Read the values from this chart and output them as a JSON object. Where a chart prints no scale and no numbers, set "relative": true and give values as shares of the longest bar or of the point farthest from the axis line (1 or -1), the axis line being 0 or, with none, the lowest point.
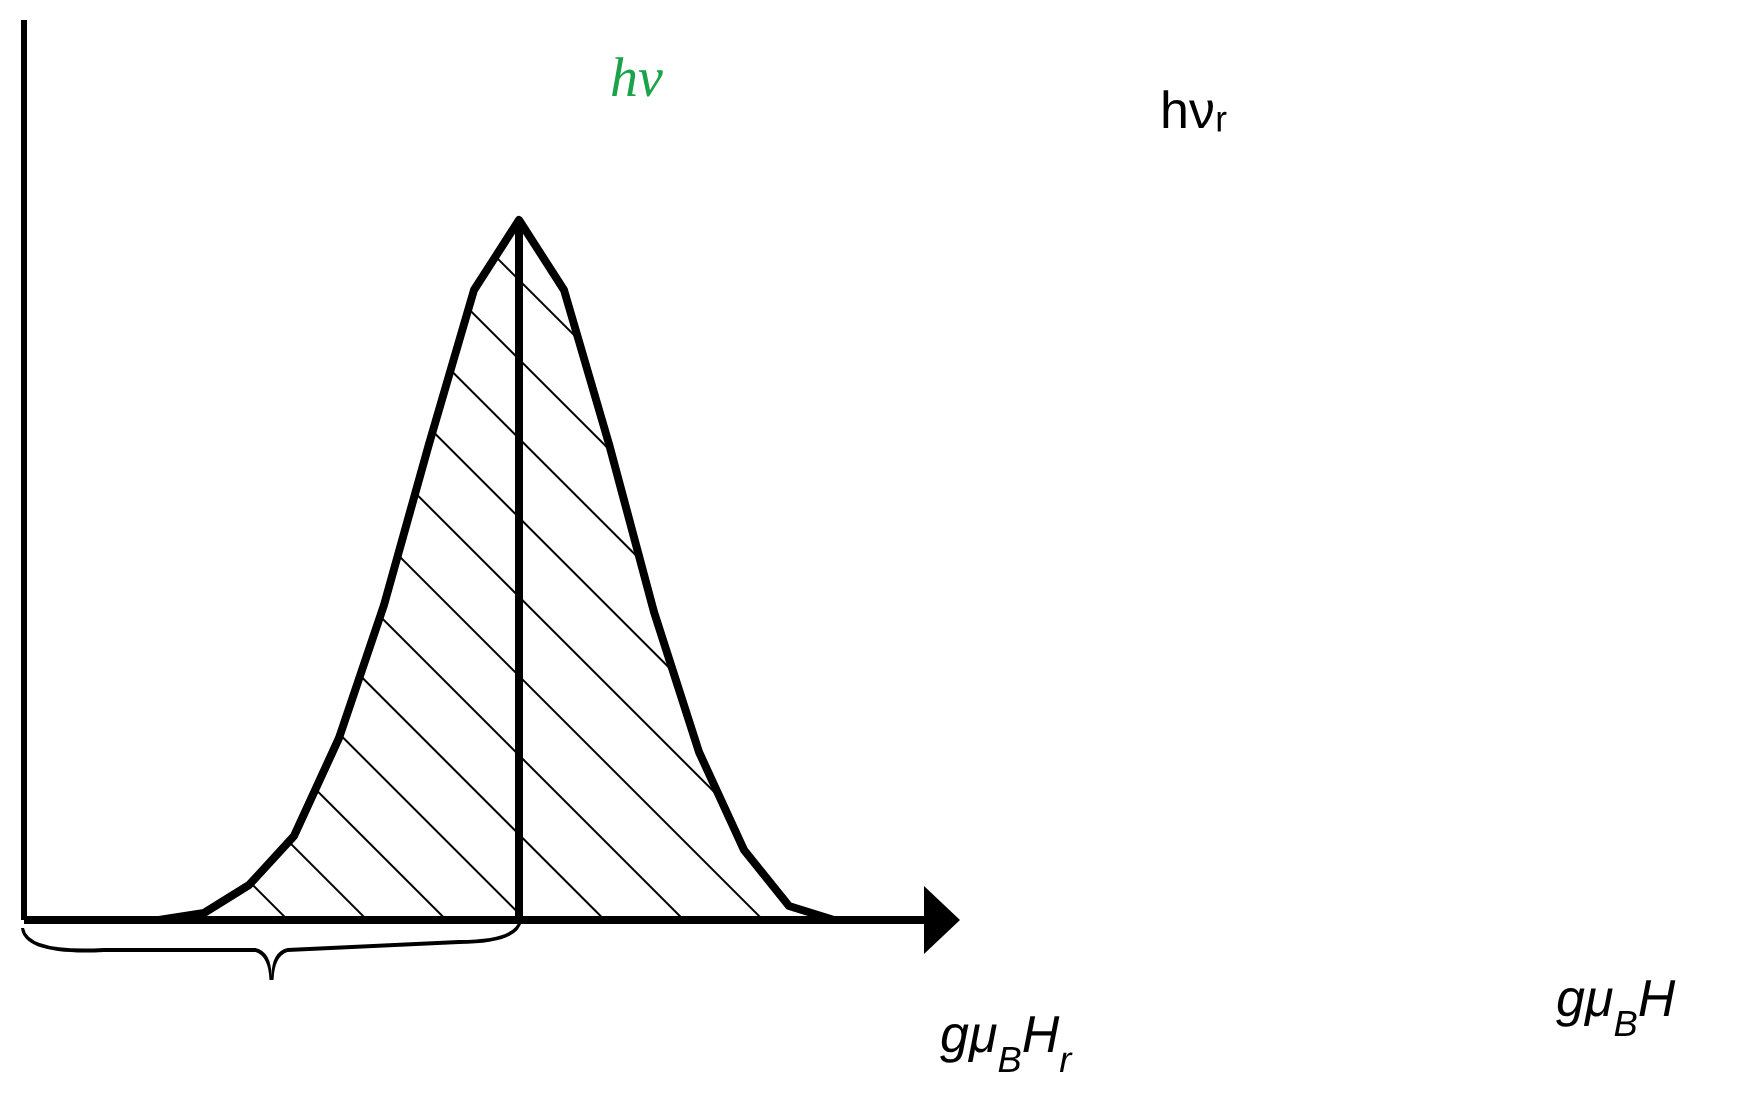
{
  "chart_data": {
    "type": "area",
    "relative": true,
    "color": "#000000",
    "categories": [
      null,
      null,
      null,
      null,
      null,
      null,
      null,
      null,
      null,
      null,
      null,
      null,
      null,
      null,
      null,
      null,
      null,
      null,
      null,
      null,
      null
    ],
    "values": [
      0,
      0,
      0,
      0,
      0.01,
      0.05,
      0.12,
      0.26,
      0.45,
      0.68,
      0.9,
      1,
      0.9,
      0.68,
      0.44,
      0.24,
      0.1,
      0.02,
      0,
      0,
      0
    ],
    "annotations": [
      "hν",
      "hνᵣ",
      "gμ$_{B}$H$_{r}$",
      "gμ$_{B}$H"
    ]
  }
}
